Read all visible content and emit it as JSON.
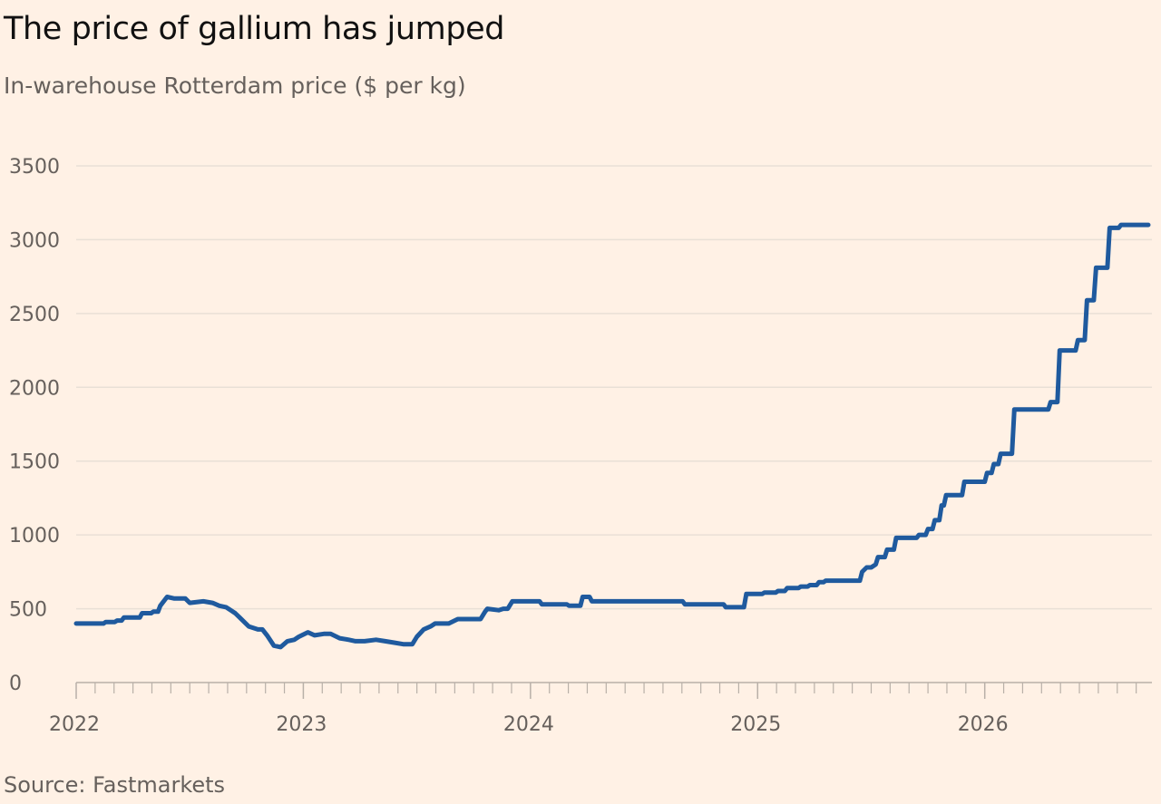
{
  "chart_data": {
    "type": "line",
    "title": "The price of gallium has jumped",
    "subtitle": "In-warehouse Rotterdam price ($ per kg)",
    "source": "Source: Fastmarkets",
    "xlabel": "",
    "ylabel": "",
    "xlim": [
      2022.0,
      2026.72
    ],
    "ylim": [
      0,
      3500
    ],
    "yticks": [
      0,
      500,
      1000,
      1500,
      2000,
      2500,
      3000,
      3500
    ],
    "xticks": [
      2022,
      2023,
      2024,
      2025,
      2026
    ],
    "xtick_labels": [
      "2022",
      "2023",
      "2024",
      "2025",
      "2026"
    ],
    "grid": true,
    "legend": "none",
    "colors": {
      "line": "#1F5A9E",
      "grid": "#E9E0D6",
      "axis": "#B8B0A8",
      "text": "#66605C",
      "background": "#FFF1E5"
    },
    "series": [
      {
        "x": [
          2022.0,
          2022.06,
          2022.12,
          2022.13,
          2022.17,
          2022.18,
          2022.2,
          2022.21,
          2022.28,
          2022.29,
          2022.33,
          2022.34,
          2022.36,
          2022.37,
          2022.4,
          2022.43,
          2022.48,
          2022.5,
          2022.56,
          2022.6,
          2022.63,
          2022.66,
          2022.7,
          2022.72,
          2022.76,
          2022.8,
          2022.82,
          2022.84,
          2022.87,
          2022.9,
          2022.93,
          2022.96,
          2022.98,
          2023.02,
          2023.05,
          2023.09,
          2023.12,
          2023.16,
          2023.2,
          2023.23,
          2023.27,
          2023.32,
          2023.36,
          2023.4,
          2023.44,
          2023.48,
          2023.5,
          2023.53,
          2023.56,
          2023.58,
          2023.6,
          2023.64,
          2023.68,
          2023.7,
          2023.74,
          2023.78,
          2023.8,
          2023.81,
          2023.86,
          2023.88,
          2023.9,
          2023.92,
          2024.04,
          2024.05,
          2024.16,
          2024.17,
          2024.22,
          2024.23,
          2024.26,
          2024.27,
          2024.67,
          2024.68,
          2024.85,
          2024.86,
          2024.94,
          2024.95,
          2025.02,
          2025.03,
          2025.08,
          2025.09,
          2025.12,
          2025.13,
          2025.18,
          2025.19,
          2025.22,
          2025.23,
          2025.26,
          2025.27,
          2025.29,
          2025.3,
          2025.45,
          2025.46,
          2025.48,
          2025.5,
          2025.52,
          2025.53,
          2025.56,
          2025.57,
          2025.6,
          2025.61,
          2025.7,
          2025.71,
          2025.74,
          2025.75,
          2025.77,
          2025.78,
          2025.8,
          2025.81,
          2025.82,
          2025.83,
          2025.9,
          2025.91,
          2026.0,
          2026.01,
          2026.03,
          2026.04,
          2026.06,
          2026.07,
          2026.12,
          2026.13,
          2026.28,
          2026.29,
          2026.32,
          2026.33,
          2026.35,
          2026.36,
          2026.4,
          2026.41,
          2026.44,
          2026.45,
          2026.48,
          2026.49,
          2026.54,
          2026.55,
          2026.59,
          2026.6,
          2026.72
        ],
        "y": [
          400,
          400,
          400,
          410,
          410,
          420,
          420,
          440,
          440,
          470,
          470,
          480,
          480,
          520,
          580,
          570,
          570,
          540,
          550,
          540,
          520,
          510,
          470,
          440,
          380,
          360,
          360,
          320,
          250,
          240,
          280,
          290,
          310,
          340,
          320,
          330,
          330,
          300,
          290,
          280,
          280,
          290,
          280,
          270,
          260,
          260,
          310,
          360,
          380,
          400,
          400,
          400,
          430,
          430,
          430,
          430,
          480,
          500,
          490,
          500,
          500,
          550,
          550,
          530,
          530,
          520,
          520,
          580,
          580,
          550,
          550,
          530,
          530,
          510,
          510,
          600,
          600,
          610,
          610,
          620,
          620,
          640,
          640,
          650,
          650,
          660,
          660,
          680,
          680,
          690,
          690,
          750,
          780,
          780,
          800,
          850,
          850,
          900,
          900,
          980,
          980,
          1000,
          1000,
          1040,
          1040,
          1100,
          1100,
          1200,
          1200,
          1270,
          1270,
          1360,
          1360,
          1420,
          1420,
          1480,
          1480,
          1550,
          1550,
          1850,
          1850,
          1900,
          1900,
          2250,
          2250,
          2250,
          2250,
          2320,
          2320,
          2590,
          2590,
          2810,
          2810,
          3080,
          3080,
          3100,
          3100
        ]
      }
    ]
  }
}
